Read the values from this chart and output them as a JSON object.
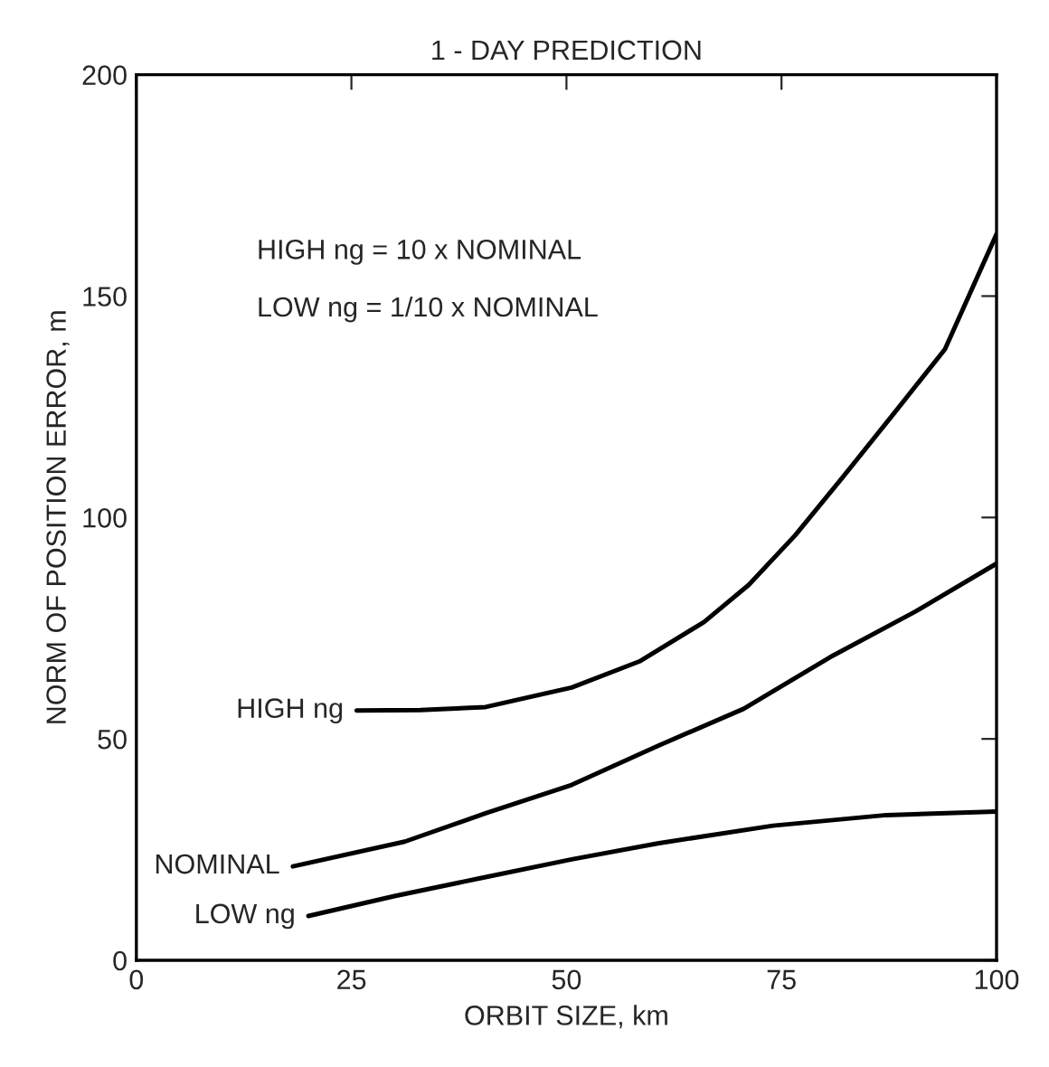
{
  "chart_data": {
    "type": "line",
    "title": "1 - DAY PREDICTION",
    "xlabel": "ORBIT SIZE, km",
    "ylabel": "NORM OF POSITION ERROR, m",
    "xlim": [
      0,
      100
    ],
    "xticks": [
      0,
      25,
      50,
      75,
      100
    ],
    "ylim": [
      0,
      200
    ],
    "yticks": [
      0,
      50,
      100,
      150,
      200
    ],
    "grid": false,
    "legend": false,
    "marker": "none",
    "line_style": "solid",
    "annotations": [
      "HIGH ng = 10 x NOMINAL",
      "LOW ng = 1/10 x NOMINAL"
    ],
    "series": [
      {
        "name": "HIGH ng",
        "color": "#000000",
        "x": [
          25.6,
          33,
          40.6,
          50.6,
          58.6,
          66,
          71.2,
          76.6,
          82,
          88.6,
          94,
          100
        ],
        "values": [
          56.4,
          56.5,
          57.2,
          61.6,
          67.6,
          76.4,
          84.8,
          96,
          108.8,
          124.8,
          138,
          164
        ]
      },
      {
        "name": "NOMINAL",
        "color": "#000000",
        "x": [
          18.2,
          31.2,
          40.6,
          50.6,
          60.6,
          70.6,
          80.6,
          90.6,
          100
        ],
        "values": [
          21.2,
          26.8,
          33.2,
          39.6,
          48.4,
          56.8,
          68.4,
          78.8,
          89.6
        ]
      },
      {
        "name": "LOW ng",
        "color": "#000000",
        "x": [
          20,
          30,
          40.6,
          50.6,
          60.6,
          74,
          87.2,
          100
        ],
        "values": [
          10,
          14.5,
          18.8,
          22.8,
          26.4,
          30.4,
          32.8,
          33.6
        ]
      }
    ]
  }
}
